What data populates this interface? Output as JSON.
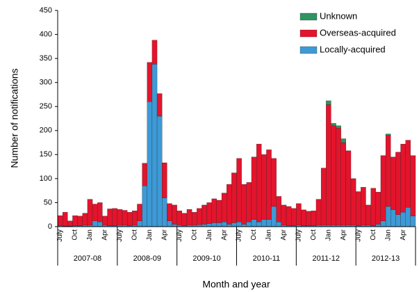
{
  "chart_data": {
    "type": "stacked_bar",
    "y_label": "Number of notifications",
    "x_label": "Month and year",
    "categories": [
      "July",
      null,
      null,
      "Oct",
      null,
      null,
      "Jan",
      null,
      null,
      "Apr",
      null,
      null,
      "July",
      null,
      null,
      "Oct",
      null,
      null,
      "Jan",
      null,
      null,
      "Apr",
      null,
      null,
      "July",
      null,
      null,
      "Oct",
      null,
      null,
      "Jan",
      null,
      null,
      "Apr",
      null,
      null,
      "July",
      null,
      null,
      "Oct",
      null,
      null,
      "Jan",
      null,
      null,
      "Apr",
      null,
      null,
      "July",
      null,
      null,
      "Oct",
      null,
      null,
      "Jan",
      null,
      null,
      "Apr",
      null,
      null,
      "July",
      null,
      null,
      "Oct",
      null,
      null,
      "Jan",
      null,
      null,
      "Apr",
      null,
      null
    ],
    "groups": [
      "2007-08",
      "2008-09",
      "2009-10",
      "2010-11",
      "2011-12",
      "2012-13"
    ],
    "series": [
      {
        "name": "Locally-acquired",
        "color": "#3d9ad6",
        "values": [
          2,
          1,
          1,
          2,
          2,
          3,
          3,
          12,
          10,
          3,
          2,
          2,
          3,
          3,
          2,
          3,
          12,
          85,
          260,
          338,
          230,
          60,
          12,
          5,
          3,
          2,
          3,
          3,
          4,
          5,
          6,
          8,
          8,
          10,
          5,
          8,
          10,
          5,
          10,
          15,
          10,
          15,
          15,
          42,
          10,
          3,
          2,
          2,
          3,
          2,
          2,
          2,
          3,
          3,
          3,
          3,
          3,
          3,
          3,
          3,
          2,
          3,
          3,
          2,
          5,
          12,
          42,
          35,
          25,
          30,
          40,
          22
        ]
      },
      {
        "name": "Overseas-acquired",
        "color": "#e3142c",
        "values": [
          21,
          29,
          11,
          21,
          20,
          25,
          54,
          35,
          40,
          19,
          35,
          36,
          33,
          31,
          28,
          30,
          35,
          47,
          82,
          50,
          47,
          73,
          36,
          40,
          30,
          26,
          33,
          27,
          34,
          40,
          44,
          50,
          47,
          60,
          83,
          104,
          132,
          83,
          82,
          130,
          162,
          135,
          145,
          100,
          53,
          42,
          40,
          36,
          45,
          33,
          30,
          31,
          54,
          119,
          251,
          207,
          202,
          172,
          155,
          97,
          71,
          79,
          42,
          78,
          67,
          136,
          148,
          110,
          130,
          142,
          140,
          126
        ]
      },
      {
        "name": "Unknown",
        "color": "#2e9462",
        "values": [
          0,
          0,
          0,
          0,
          0,
          0,
          0,
          0,
          0,
          0,
          0,
          0,
          0,
          0,
          0,
          0,
          0,
          0,
          0,
          0,
          0,
          0,
          0,
          0,
          0,
          0,
          0,
          0,
          0,
          0,
          0,
          0,
          0,
          0,
          0,
          0,
          0,
          0,
          0,
          0,
          0,
          0,
          0,
          0,
          0,
          0,
          0,
          0,
          0,
          0,
          0,
          0,
          0,
          0,
          8,
          5,
          5,
          8,
          0,
          0,
          0,
          0,
          0,
          0,
          0,
          0,
          3,
          0,
          0,
          0,
          0,
          0
        ]
      }
    ],
    "ylim": [
      0,
      450
    ],
    "yticks": [
      0,
      50,
      100,
      150,
      200,
      250,
      300,
      350,
      400,
      450
    ],
    "legend": "top-right"
  }
}
